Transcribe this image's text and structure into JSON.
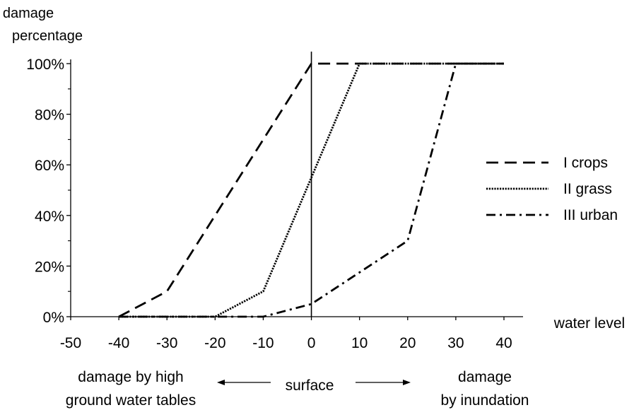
{
  "chart_data": {
    "type": "line",
    "ylabel_lines": [
      "damage",
      "percentage"
    ],
    "xlabel": "water level",
    "x_ticks": [
      -50,
      -40,
      -30,
      -20,
      -10,
      0,
      10,
      20,
      30,
      40
    ],
    "y_ticks": [
      0,
      20,
      40,
      60,
      80,
      100
    ],
    "y_tick_labels": [
      "0%",
      "20%",
      "40%",
      "60%",
      "80%",
      "100%"
    ],
    "xlim": [
      -50,
      40
    ],
    "ylim": [
      0,
      100
    ],
    "grid": false,
    "legend_position": "right",
    "series": [
      {
        "name": "I crops",
        "style": "dashed",
        "x": [
          -40,
          -30,
          0,
          40
        ],
        "y": [
          0,
          10,
          100,
          100
        ]
      },
      {
        "name": "II grass",
        "style": "dotted",
        "x": [
          -40,
          -20,
          -10,
          10,
          40
        ],
        "y": [
          0,
          0,
          10,
          100,
          100
        ]
      },
      {
        "name": "III urban",
        "style": "dashdot",
        "x": [
          -40,
          -10,
          0,
          20,
          30,
          40
        ],
        "y": [
          0,
          0,
          5,
          30,
          100,
          100
        ]
      }
    ],
    "annotations": {
      "left_lines": [
        "damage by high",
        "ground water tables"
      ],
      "center": "surface",
      "right_lines": [
        "damage",
        "by inundation"
      ]
    }
  }
}
